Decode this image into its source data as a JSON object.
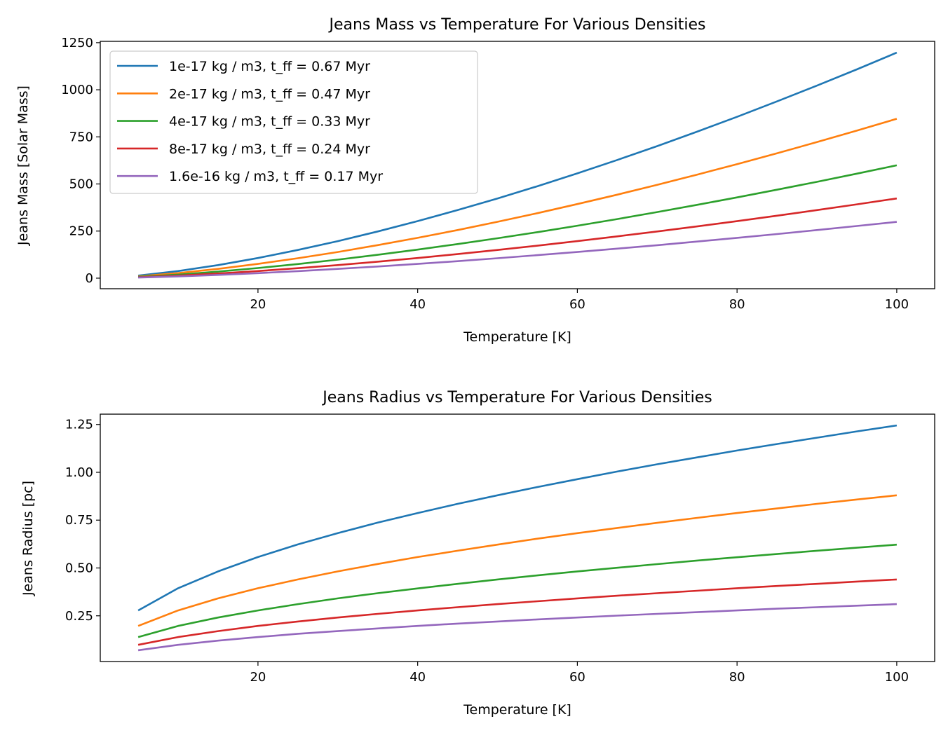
{
  "chart_data": [
    {
      "type": "line",
      "title": "Jeans Mass vs Temperature For Various Densities",
      "xlabel": "Temperature [K]",
      "ylabel": "Jeans Mass [Solar Mass]",
      "xlim": [
        0.25,
        104.75
      ],
      "ylim": [
        -56,
        1257
      ],
      "xticks": [
        20,
        40,
        60,
        80,
        100
      ],
      "yticks": [
        0,
        250,
        500,
        750,
        1000,
        1250
      ],
      "grid": false,
      "legend": "top-left",
      "x": [
        5,
        10,
        15,
        20,
        25,
        30,
        35,
        40,
        45,
        50,
        55,
        60,
        65,
        70,
        75,
        80,
        85,
        90,
        95,
        100
      ],
      "series": [
        {
          "name": "1e-17 kg / m3, t_ff = 0.67 Myr",
          "color": "#1f77b4",
          "values": [
            13.4,
            37.8,
            69.5,
            107.1,
            149.6,
            196.7,
            247.9,
            302.8,
            361.4,
            423.2,
            488.3,
            556.4,
            627.2,
            701.1,
            777.4,
            856.5,
            938.1,
            1022.0,
            1108.3,
            1197
          ]
        },
        {
          "name": "2e-17 kg / m3, t_ff = 0.47 Myr",
          "color": "#ff7f0e",
          "values": [
            9.5,
            26.8,
            49.1,
            75.7,
            105.8,
            139.0,
            175.2,
            214.0,
            255.4,
            299.1,
            345.1,
            393.2,
            443.3,
            495.5,
            549.5,
            605.3,
            663.0,
            722.3,
            783.3,
            846
          ]
        },
        {
          "name": "4e-17 kg / m3, t_ff = 0.33 Myr",
          "color": "#2ca02c",
          "values": [
            6.7,
            18.9,
            34.8,
            53.6,
            74.9,
            98.4,
            124.1,
            151.5,
            180.8,
            211.8,
            244.3,
            278.4,
            313.9,
            350.8,
            389.1,
            428.6,
            469.4,
            511.4,
            554.6,
            599
          ]
        },
        {
          "name": "8e-17 kg / m3, t_ff = 0.24 Myr",
          "color": "#d62728",
          "values": [
            4.7,
            13.4,
            24.6,
            37.8,
            52.9,
            69.5,
            87.6,
            107.0,
            127.7,
            149.6,
            172.5,
            196.6,
            221.7,
            247.8,
            274.7,
            302.7,
            331.5,
            361.2,
            391.7,
            423
          ]
        },
        {
          "name": "1.6e-16 kg / m3, t_ff = 0.17 Myr",
          "color": "#9467bd",
          "values": [
            3.3,
            9.5,
            17.4,
            26.7,
            37.4,
            49.1,
            61.9,
            75.6,
            90.3,
            105.7,
            122.0,
            139.0,
            156.7,
            175.1,
            194.2,
            213.9,
            234.3,
            255.3,
            276.8,
            299
          ]
        }
      ]
    },
    {
      "type": "line",
      "title": "Jeans Radius vs Temperature For Various Densities",
      "xlabel": "Temperature [K]",
      "ylabel": "Jeans Radius [pc]",
      "xlim": [
        0.25,
        104.75
      ],
      "ylim": [
        0.011,
        1.304
      ],
      "xticks": [
        20,
        40,
        60,
        80,
        100
      ],
      "yticks": [
        0.25,
        0.5,
        0.75,
        1.0,
        1.25
      ],
      "ytick_labels": [
        "0.25",
        "0.50",
        "0.75",
        "1.00",
        "1.25"
      ],
      "grid": false,
      "x": [
        5,
        10,
        15,
        20,
        25,
        30,
        35,
        40,
        45,
        50,
        55,
        60,
        65,
        70,
        75,
        80,
        85,
        90,
        95,
        100
      ],
      "series": [
        {
          "color": "#1f77b4",
          "values": [
            0.278,
            0.394,
            0.482,
            0.557,
            0.623,
            0.682,
            0.737,
            0.787,
            0.835,
            0.88,
            0.923,
            0.964,
            1.004,
            1.042,
            1.078,
            1.114,
            1.148,
            1.181,
            1.214,
            1.245
          ]
        },
        {
          "color": "#ff7f0e",
          "values": [
            0.197,
            0.278,
            0.341,
            0.394,
            0.44,
            0.482,
            0.521,
            0.557,
            0.59,
            0.622,
            0.653,
            0.682,
            0.709,
            0.736,
            0.762,
            0.787,
            0.811,
            0.835,
            0.858,
            0.88
          ]
        },
        {
          "color": "#2ca02c",
          "values": [
            0.139,
            0.197,
            0.241,
            0.278,
            0.311,
            0.341,
            0.368,
            0.393,
            0.417,
            0.44,
            0.461,
            0.482,
            0.501,
            0.52,
            0.539,
            0.556,
            0.573,
            0.59,
            0.606,
            0.622
          ]
        },
        {
          "color": "#d62728",
          "values": [
            0.098,
            0.139,
            0.17,
            0.197,
            0.22,
            0.241,
            0.26,
            0.278,
            0.295,
            0.311,
            0.326,
            0.341,
            0.355,
            0.368,
            0.381,
            0.394,
            0.406,
            0.417,
            0.429,
            0.44
          ]
        },
        {
          "color": "#9467bd",
          "values": [
            0.07,
            0.098,
            0.12,
            0.139,
            0.156,
            0.17,
            0.184,
            0.197,
            0.209,
            0.22,
            0.231,
            0.241,
            0.251,
            0.26,
            0.269,
            0.278,
            0.287,
            0.295,
            0.303,
            0.311
          ]
        }
      ]
    }
  ]
}
